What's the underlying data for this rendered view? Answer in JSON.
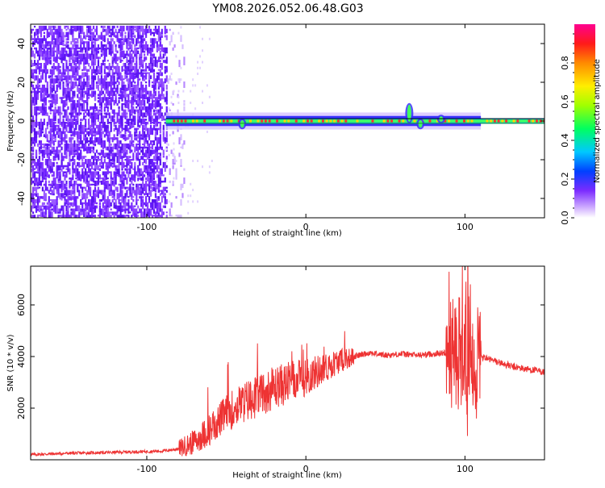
{
  "title": "YM08.2026.052.06.48.G03",
  "colors": {
    "snr_line": "#ee3333",
    "spectrogram_noise": "#7b2cff",
    "spectrogram_signal": "#00c8ff",
    "spectrogram_peak": "#ff2a2a",
    "centerline": "#000000"
  },
  "chart_data": [
    {
      "type": "heatmap",
      "name": "spectrogram",
      "xlabel": "Height of straight line (km)",
      "ylabel": "Frequency (Hz)",
      "xlim": [
        -173,
        150
      ],
      "ylim": [
        -50,
        50
      ],
      "x_ticks": [
        -100,
        0,
        100
      ],
      "y_ticks": [
        -40,
        -20,
        0,
        20,
        40
      ],
      "noise_region_x": [
        -173,
        -88
      ],
      "signal_band_x": [
        -88,
        150
      ],
      "signal_center_hz": 0,
      "signal_halfwidth_hz": 2,
      "spike": {
        "x": 65,
        "y": 8
      },
      "colorbar": {
        "label": "Normalized spectral amplitude",
        "range": [
          0,
          1
        ],
        "ticks": [
          "0.0",
          "0.2",
          "0.4",
          "0.6",
          "0.8"
        ],
        "tick_values": [
          0.0,
          0.2,
          0.4,
          0.6,
          0.8
        ]
      }
    },
    {
      "type": "line",
      "name": "snr",
      "xlabel": "Height of straight line (km)",
      "ylabel": "SNR (10 * v/v)",
      "xlim": [
        -173,
        150
      ],
      "ylim": [
        0,
        7500
      ],
      "x_ticks": [
        -100,
        0,
        100
      ],
      "y_ticks": [
        2000,
        4000,
        6000
      ],
      "series": [
        {
          "x": [
            -173,
            -150,
            -125,
            -100,
            -90,
            -80,
            -70,
            -60,
            -50,
            -40,
            -30,
            -20,
            -10,
            0,
            10,
            20,
            30,
            40,
            50,
            60,
            70,
            80,
            90,
            95,
            100,
            105,
            110,
            120,
            130,
            140,
            150
          ],
          "values": [
            200,
            250,
            280,
            320,
            340,
            420,
            700,
            1200,
            1800,
            2200,
            2500,
            2800,
            3000,
            3200,
            3500,
            3800,
            4000,
            4150,
            4050,
            4100,
            4050,
            4100,
            4150,
            4300,
            4200,
            4100,
            4000,
            3800,
            3600,
            3500,
            3400
          ]
        }
      ]
    }
  ]
}
